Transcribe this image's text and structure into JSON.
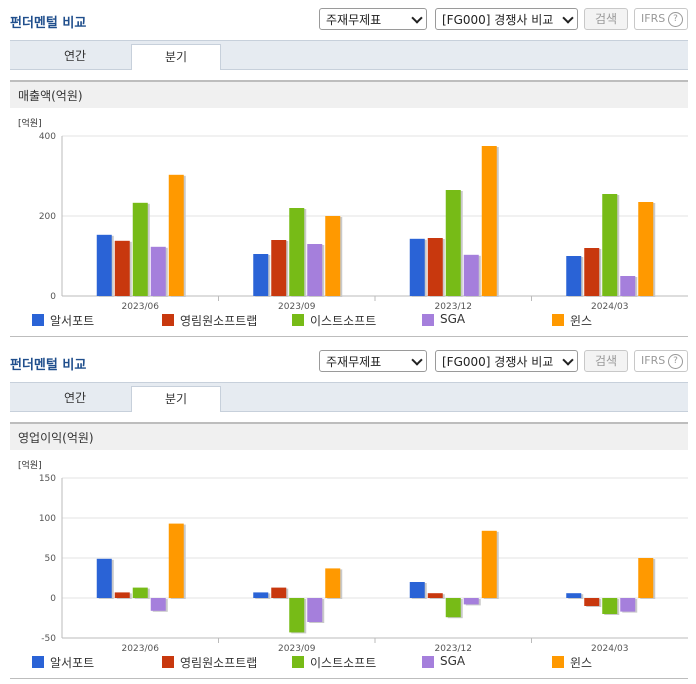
{
  "panels": [
    {
      "title": "펀더멘털 비교",
      "select1": "주재무제표",
      "select2": "[FG000] 경쟁사 비교",
      "search_button": "검색",
      "ifrs_label": "IFRS",
      "help_icon": "?",
      "tabs": [
        "연간",
        "분기"
      ],
      "active_tab": 1,
      "section_title": "매출액(억원)"
    },
    {
      "title": "펀더멘털 비교",
      "select1": "주재무제표",
      "select2": "[FG000] 경쟁사 비교",
      "search_button": "검색",
      "ifrs_label": "IFRS",
      "help_icon": "?",
      "tabs": [
        "연간",
        "분기"
      ],
      "active_tab": 1,
      "section_title": "영업이익(억원)"
    }
  ],
  "chart_data": [
    {
      "type": "bar",
      "unit_label": "[억원]",
      "categories": [
        "2023/06",
        "2023/09",
        "2023/12",
        "2024/03"
      ],
      "ylim": [
        0,
        400
      ],
      "yticks": [
        0,
        200,
        400
      ],
      "grid": true,
      "legend_position": "bottom",
      "series": [
        {
          "name": "알서포트",
          "color": "#2a63d6",
          "values": [
            153,
            105,
            143,
            100
          ]
        },
        {
          "name": "영림원소프트랩",
          "color": "#c8380e",
          "values": [
            138,
            140,
            145,
            120
          ]
        },
        {
          "name": "이스트소프트",
          "color": "#77bb17",
          "values": [
            233,
            220,
            265,
            255
          ]
        },
        {
          "name": "SGA",
          "color": "#a57fdc",
          "values": [
            123,
            130,
            103,
            50
          ]
        },
        {
          "name": "윈스",
          "color": "#ff9900",
          "values": [
            303,
            200,
            375,
            235
          ]
        }
      ]
    },
    {
      "type": "bar",
      "unit_label": "[억원]",
      "categories": [
        "2023/06",
        "2023/09",
        "2023/12",
        "2024/03"
      ],
      "ylim": [
        -50,
        150
      ],
      "yticks": [
        -50,
        0,
        50,
        100,
        150
      ],
      "grid": true,
      "legend_position": "bottom",
      "series": [
        {
          "name": "알서포트",
          "color": "#2a63d6",
          "values": [
            49,
            7,
            20,
            6
          ]
        },
        {
          "name": "영림원소프트랩",
          "color": "#c8380e",
          "values": [
            7,
            13,
            6,
            -10
          ]
        },
        {
          "name": "이스트소프트",
          "color": "#77bb17",
          "values": [
            13,
            -43,
            -24,
            -20
          ]
        },
        {
          "name": "SGA",
          "color": "#a57fdc",
          "values": [
            -16,
            -30,
            -8,
            -17
          ]
        },
        {
          "name": "윈스",
          "color": "#ff9900",
          "values": [
            93,
            37,
            84,
            50
          ]
        }
      ]
    }
  ]
}
